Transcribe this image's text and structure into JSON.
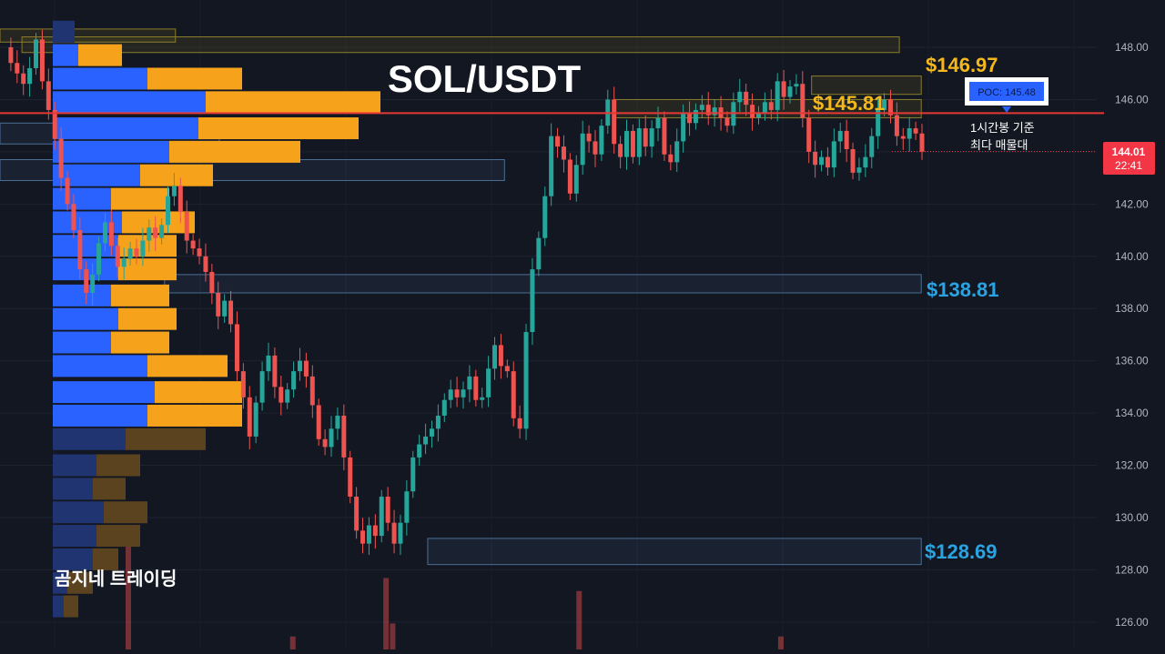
{
  "chart_data": {
    "type": "candlestick",
    "title": "SOL/USDT",
    "ylim": [
      124.5,
      149.5
    ],
    "y_ticks": [
      "126.00",
      "128.00",
      "130.00",
      "132.00",
      "134.00",
      "136.00",
      "138.00",
      "140.00",
      "142.00",
      "144.00",
      "146.00",
      "148.00"
    ],
    "levels": [
      {
        "label": "$146.97",
        "value": 146.97,
        "color": "#f5b81c"
      },
      {
        "label": "$145.81",
        "value": 145.81,
        "color": "#f5b81c"
      },
      {
        "label": "$138.81",
        "value": 138.81,
        "color": "#2aa3e3"
      },
      {
        "label": "$128.69",
        "value": 128.69,
        "color": "#2aa3e3"
      }
    ],
    "poc": {
      "label": "POC: 145.48",
      "value": 145.48,
      "note_line1": "1시간봉 기준",
      "note_line2": "최다 매물대"
    },
    "last_price": {
      "price": "144.01",
      "countdown": "22:41",
      "value": 144.01
    },
    "colors": {
      "up": "#26a69a",
      "down": "#ef5350",
      "poc_line": "#e53935",
      "profile_blue": "#2962ff",
      "profile_orange": "#f7a21b"
    },
    "price_path": [
      148.0,
      147.4,
      147.0,
      146.6,
      147.2,
      148.3,
      146.7,
      145.6,
      144.5,
      143.0,
      142.0,
      141.0,
      139.5,
      138.6,
      139.3,
      140.5,
      141.3,
      140.4,
      139.6,
      139.9,
      140.3,
      140.0,
      140.6,
      141.1,
      140.7,
      141.2,
      142.3,
      142.7,
      141.7,
      140.6,
      140.3,
      140.0,
      139.4,
      138.6,
      137.7,
      138.3,
      137.4,
      135.6,
      134.6,
      133.1,
      134.4,
      135.6,
      136.2,
      135.0,
      134.4,
      134.9,
      135.6,
      136.0,
      135.4,
      134.3,
      133.0,
      132.7,
      133.4,
      133.9,
      132.3,
      130.8,
      129.5,
      129.0,
      129.7,
      129.3,
      130.8,
      129.8,
      129.0,
      129.8,
      131.0,
      132.3,
      132.8,
      133.1,
      133.4,
      133.9,
      134.5,
      134.9,
      134.6,
      134.9,
      135.4,
      134.5,
      134.6,
      135.7,
      136.6,
      135.8,
      135.6,
      133.8,
      133.4,
      137.1,
      139.5,
      140.7,
      142.3,
      144.6,
      144.2,
      143.7,
      142.4,
      143.5,
      144.7,
      144.4,
      143.9,
      145.0,
      146.0,
      144.3,
      143.8,
      144.8,
      143.8,
      144.9,
      144.2,
      144.9,
      145.3,
      143.9,
      143.6,
      144.4,
      145.5,
      145.1,
      145.6,
      145.8,
      145.4,
      145.7,
      145.3,
      145.0,
      145.9,
      146.3,
      145.8,
      145.3,
      145.5,
      145.9,
      145.6,
      146.7,
      146.1,
      146.5,
      146.6,
      145.3,
      144.0,
      143.5,
      143.8,
      143.4,
      144.4,
      144.8,
      144.1,
      143.2,
      143.4,
      143.8,
      144.6,
      145.6,
      146.0,
      145.4,
      144.6,
      144.5,
      144.9,
      144.7,
      144.0
    ],
    "volume_profile": [
      {
        "price": 148.6,
        "blue": 0.3,
        "orange": 0.0
      },
      {
        "price": 147.7,
        "blue": 0.35,
        "orange": 0.6
      },
      {
        "price": 146.8,
        "blue": 1.3,
        "orange": 1.3
      },
      {
        "price": 145.9,
        "blue": 2.1,
        "orange": 2.4
      },
      {
        "price": 144.9,
        "blue": 2.0,
        "orange": 2.2
      },
      {
        "price": 144.0,
        "blue": 1.6,
        "orange": 1.8
      },
      {
        "price": 143.1,
        "blue": 1.2,
        "orange": 1.0
      },
      {
        "price": 142.2,
        "blue": 0.8,
        "orange": 0.8
      },
      {
        "price": 141.3,
        "blue": 0.95,
        "orange": 1.0
      },
      {
        "price": 140.4,
        "blue": 0.9,
        "orange": 0.8
      },
      {
        "price": 139.5,
        "blue": 0.9,
        "orange": 0.8
      },
      {
        "price": 138.5,
        "blue": 0.8,
        "orange": 0.8
      },
      {
        "price": 137.6,
        "blue": 0.9,
        "orange": 0.8
      },
      {
        "price": 136.7,
        "blue": 0.8,
        "orange": 0.8
      },
      {
        "price": 135.8,
        "blue": 1.3,
        "orange": 1.1
      },
      {
        "price": 134.8,
        "blue": 1.4,
        "orange": 1.2
      },
      {
        "price": 133.9,
        "blue": 1.3,
        "orange": 1.3
      },
      {
        "price": 133.0,
        "blue": 1.0,
        "orange": 1.1
      },
      {
        "price": 132.0,
        "blue": 0.6,
        "orange": 0.6
      },
      {
        "price": 131.1,
        "blue": 0.55,
        "orange": 0.45
      },
      {
        "price": 130.2,
        "blue": 0.7,
        "orange": 0.6
      },
      {
        "price": 129.3,
        "blue": 0.6,
        "orange": 0.6
      },
      {
        "price": 128.4,
        "blue": 0.55,
        "orange": 0.35
      },
      {
        "price": 127.5,
        "blue": 0.2,
        "orange": 0.35
      },
      {
        "price": 126.6,
        "blue": 0.15,
        "orange": 0.2
      }
    ],
    "zones": [
      {
        "hi": 148.4,
        "lo": 147.8,
        "from": 0.02,
        "to": 0.82,
        "color": "yellow"
      },
      {
        "hi": 148.7,
        "lo": 148.2,
        "from": 0.0,
        "to": 0.16,
        "color": "yellow"
      },
      {
        "hi": 146.9,
        "lo": 146.2,
        "from": 0.74,
        "to": 0.84,
        "color": "yellow"
      },
      {
        "hi": 146.0,
        "lo": 145.3,
        "from": 0.56,
        "to": 0.84,
        "color": "yellow"
      },
      {
        "hi": 145.1,
        "lo": 144.3,
        "from": 0.0,
        "to": 0.2,
        "color": "blue"
      },
      {
        "hi": 143.7,
        "lo": 142.9,
        "from": 0.0,
        "to": 0.46,
        "color": "blue"
      },
      {
        "hi": 139.3,
        "lo": 138.6,
        "from": 0.15,
        "to": 0.84,
        "color": "blue"
      },
      {
        "hi": 129.2,
        "lo": 128.2,
        "from": 0.39,
        "to": 0.84,
        "color": "blue"
      }
    ],
    "volume_bars": [
      {
        "at": 0.117,
        "h": 0.18
      },
      {
        "at": 0.267,
        "h": 0.02
      },
      {
        "at": 0.352,
        "h": 0.11
      },
      {
        "at": 0.358,
        "h": 0.04
      },
      {
        "at": 0.528,
        "h": 0.09
      },
      {
        "at": 0.712,
        "h": 0.02
      }
    ]
  },
  "brand": "곰지네 트레이딩"
}
